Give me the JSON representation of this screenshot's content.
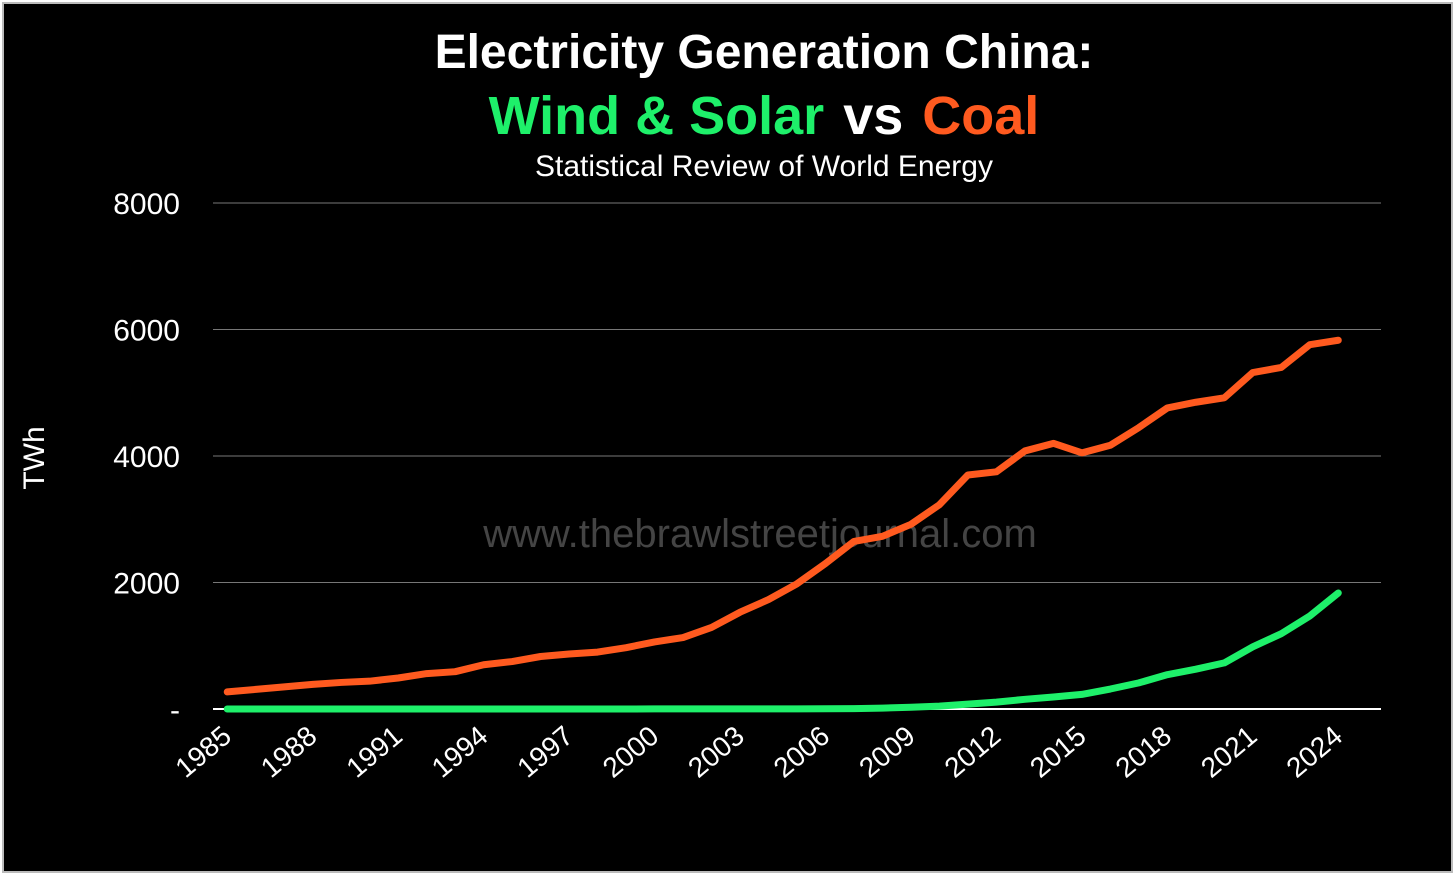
{
  "chart_data": {
    "type": "line",
    "title": "Electricity Generation China:",
    "title_joiner": "vs",
    "subtitle": "Statistical Review of World Energy",
    "ylabel": "TWh",
    "watermark": "www.thebrawlstreetjournal.com",
    "x": [
      1985,
      1986,
      1987,
      1988,
      1989,
      1990,
      1991,
      1992,
      1993,
      1994,
      1995,
      1996,
      1997,
      1998,
      1999,
      2000,
      2001,
      2002,
      2003,
      2004,
      2005,
      2006,
      2007,
      2008,
      2009,
      2010,
      2011,
      2012,
      2013,
      2014,
      2015,
      2016,
      2017,
      2018,
      2019,
      2020,
      2021,
      2022,
      2023,
      2024
    ],
    "xlim": [
      1984.5,
      2025.5
    ],
    "xticks": [
      1985,
      1988,
      1991,
      1994,
      1997,
      2000,
      2003,
      2006,
      2009,
      2012,
      2015,
      2018,
      2021,
      2024
    ],
    "ylim": [
      0,
      8000
    ],
    "yticks": [
      {
        "value": 0,
        "label": "-"
      },
      2000,
      4000,
      6000,
      8000
    ],
    "grid": true,
    "series": [
      {
        "name": "Wind & Solar",
        "color": "#1ef06a",
        "values": [
          0,
          0,
          0,
          0,
          0,
          0,
          0,
          0,
          0,
          0,
          0,
          0,
          0,
          0,
          0,
          1,
          1,
          1,
          1,
          1,
          2,
          4,
          6,
          14,
          28,
          46,
          77,
          109,
          153,
          189,
          231,
          316,
          413,
          543,
          630,
          729,
          983,
          1191,
          1470,
          1834
        ]
      },
      {
        "name": "Coal",
        "color": "#ff5a1f",
        "values": [
          270,
          310,
          350,
          390,
          420,
          440,
          490,
          560,
          590,
          700,
          750,
          830,
          870,
          900,
          970,
          1060,
          1130,
          1290,
          1530,
          1730,
          1980,
          2300,
          2650,
          2730,
          2920,
          3230,
          3700,
          3750,
          4080,
          4200,
          4050,
          4170,
          4450,
          4760,
          4850,
          4920,
          5320,
          5400,
          5760,
          5830
        ]
      }
    ]
  }
}
